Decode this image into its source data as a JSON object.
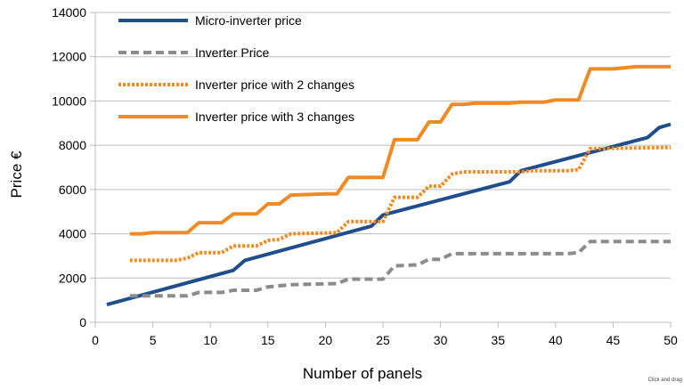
{
  "chart_data": {
    "type": "line",
    "xlabel": "Number of panels",
    "ylabel": "Price €",
    "xlim": [
      0,
      50
    ],
    "ylim": [
      0,
      14000
    ],
    "xticks": [
      0,
      5,
      10,
      15,
      20,
      25,
      30,
      35,
      40,
      45,
      50
    ],
    "yticks": [
      0,
      2000,
      4000,
      6000,
      8000,
      10000,
      12000,
      14000
    ],
    "grid": "horizontal",
    "legend_position": "top-left",
    "series": [
      {
        "name": "Micro-inverter price",
        "color": "#1f4e8c",
        "style": "solid",
        "points": [
          [
            1,
            800
          ],
          [
            12,
            2350
          ],
          [
            13,
            2800
          ],
          [
            24,
            4350
          ],
          [
            25,
            4850
          ],
          [
            36,
            6350
          ],
          [
            37,
            6850
          ],
          [
            48,
            8350
          ],
          [
            49,
            8800
          ],
          [
            50,
            8950
          ]
        ]
      },
      {
        "name": "Inverter Price",
        "color": "#8c8c8c",
        "style": "dashed",
        "points": [
          [
            3,
            1200
          ],
          [
            8,
            1200
          ],
          [
            9,
            1350
          ],
          [
            11,
            1350
          ],
          [
            12,
            1450
          ],
          [
            14,
            1450
          ],
          [
            15,
            1600
          ],
          [
            16,
            1650
          ],
          [
            17,
            1700
          ],
          [
            21,
            1750
          ],
          [
            22,
            1950
          ],
          [
            25,
            1950
          ],
          [
            26,
            2550
          ],
          [
            28,
            2600
          ],
          [
            29,
            2850
          ],
          [
            30,
            2850
          ],
          [
            31,
            3100
          ],
          [
            41,
            3100
          ],
          [
            42,
            3150
          ],
          [
            43,
            3650
          ],
          [
            50,
            3650
          ]
        ]
      },
      {
        "name": "Inverter price with 2 changes",
        "color": "#f08a24",
        "style": "dotted",
        "points": [
          [
            3,
            2800
          ],
          [
            7,
            2800
          ],
          [
            8,
            2900
          ],
          [
            9,
            3150
          ],
          [
            11,
            3150
          ],
          [
            12,
            3450
          ],
          [
            14,
            3450
          ],
          [
            15,
            3700
          ],
          [
            16,
            3750
          ],
          [
            17,
            4000
          ],
          [
            21,
            4050
          ],
          [
            22,
            4550
          ],
          [
            25,
            4550
          ],
          [
            26,
            5650
          ],
          [
            28,
            5650
          ],
          [
            29,
            6150
          ],
          [
            30,
            6150
          ],
          [
            31,
            6700
          ],
          [
            32,
            6800
          ],
          [
            37,
            6800
          ],
          [
            38,
            6850
          ],
          [
            41,
            6850
          ],
          [
            42,
            6900
          ],
          [
            43,
            7850
          ],
          [
            50,
            7900
          ]
        ]
      },
      {
        "name": "Inverter price with 3 changes",
        "color": "#f08a24",
        "style": "solid",
        "points": [
          [
            3,
            4000
          ],
          [
            4,
            4000
          ],
          [
            5,
            4050
          ],
          [
            8,
            4050
          ],
          [
            9,
            4500
          ],
          [
            11,
            4500
          ],
          [
            12,
            4900
          ],
          [
            14,
            4900
          ],
          [
            15,
            5350
          ],
          [
            16,
            5350
          ],
          [
            17,
            5750
          ],
          [
            20,
            5800
          ],
          [
            21,
            5800
          ],
          [
            22,
            6550
          ],
          [
            25,
            6550
          ],
          [
            26,
            8250
          ],
          [
            28,
            8250
          ],
          [
            29,
            9050
          ],
          [
            30,
            9050
          ],
          [
            31,
            9850
          ],
          [
            32,
            9850
          ],
          [
            33,
            9900
          ],
          [
            36,
            9900
          ],
          [
            37,
            9950
          ],
          [
            39,
            9950
          ],
          [
            40,
            10050
          ],
          [
            42,
            10050
          ],
          [
            43,
            11450
          ],
          [
            45,
            11450
          ],
          [
            46,
            11500
          ],
          [
            47,
            11550
          ],
          [
            50,
            11550
          ]
        ]
      }
    ]
  },
  "watermark": "Click and drag"
}
